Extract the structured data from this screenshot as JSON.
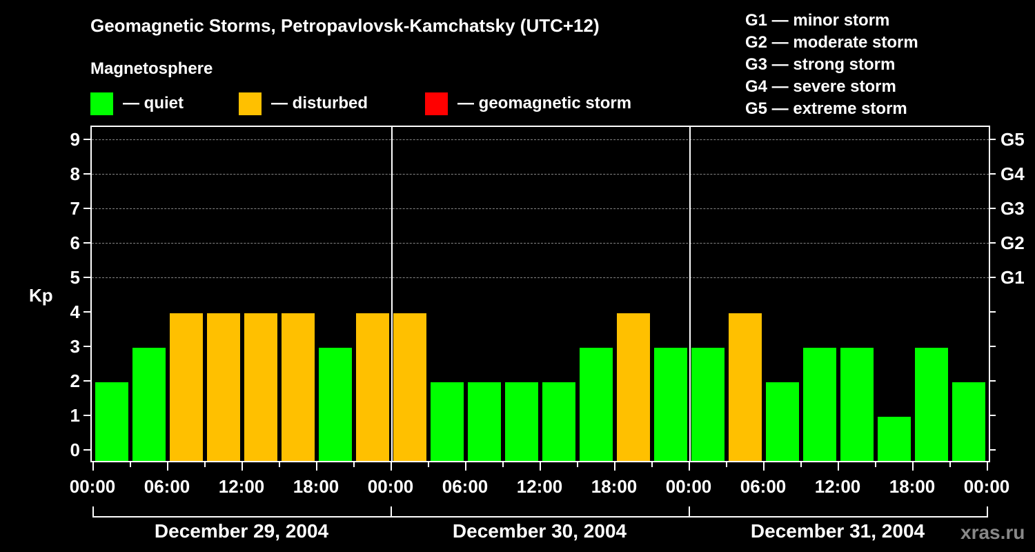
{
  "title": "Geomagnetic Storms, Petropavlovsk-Kamchatsky (UTC+12)",
  "subtitle": "Magnetosphere",
  "legend": [
    {
      "label": "— quiet",
      "color": "#00ff00"
    },
    {
      "label": "— disturbed",
      "color": "#ffc000"
    },
    {
      "label": "— geomagnetic storm",
      "color": "#ff0000"
    }
  ],
  "g_scale": [
    "G1 — minor storm",
    "G2 — moderate storm",
    "G3 — strong storm",
    "G4 — severe storm",
    "G5 — extreme storm"
  ],
  "y_axis_label": "Kp",
  "y_ticks": [
    "0",
    "1",
    "2",
    "3",
    "4",
    "5",
    "6",
    "7",
    "8",
    "9"
  ],
  "g_ticks": [
    {
      "label": "G1",
      "kp": 5
    },
    {
      "label": "G2",
      "kp": 6
    },
    {
      "label": "G3",
      "kp": 7
    },
    {
      "label": "G4",
      "kp": 8
    },
    {
      "label": "G5",
      "kp": 9
    }
  ],
  "x_ticks": [
    "00:00",
    "06:00",
    "12:00",
    "18:00",
    "00:00",
    "06:00",
    "12:00",
    "18:00",
    "00:00",
    "06:00",
    "12:00",
    "18:00",
    "00:00"
  ],
  "days": [
    "December 29, 2004",
    "December 30, 2004",
    "December 31, 2004"
  ],
  "watermark": "xras.ru",
  "colors": {
    "quiet": "#00ff00",
    "disturbed": "#ffc000",
    "storm": "#ff0000",
    "grid": "#888888"
  },
  "chart_data": {
    "type": "bar",
    "title": "Geomagnetic Storms, Petropavlovsk-Kamchatsky (UTC+12)",
    "xlabel": "",
    "ylabel": "Kp",
    "ylim": [
      0,
      9
    ],
    "grid": true,
    "legend_position": "top",
    "categories": [
      "Dec 29 00:00",
      "Dec 29 03:00",
      "Dec 29 06:00",
      "Dec 29 09:00",
      "Dec 29 12:00",
      "Dec 29 15:00",
      "Dec 29 18:00",
      "Dec 29 21:00",
      "Dec 30 00:00",
      "Dec 30 03:00",
      "Dec 30 06:00",
      "Dec 30 09:00",
      "Dec 30 12:00",
      "Dec 30 15:00",
      "Dec 30 18:00",
      "Dec 30 21:00",
      "Dec 31 00:00",
      "Dec 31 03:00",
      "Dec 31 06:00",
      "Dec 31 09:00",
      "Dec 31 12:00",
      "Dec 31 15:00",
      "Dec 31 18:00",
      "Dec 31 21:00"
    ],
    "values": [
      2,
      3,
      4,
      4,
      4,
      4,
      3,
      4,
      4,
      2,
      2,
      2,
      2,
      3,
      4,
      3,
      3,
      4,
      2,
      3,
      3,
      1,
      3,
      2
    ],
    "status": [
      "quiet",
      "quiet",
      "disturbed",
      "disturbed",
      "disturbed",
      "disturbed",
      "quiet",
      "disturbed",
      "disturbed",
      "quiet",
      "quiet",
      "quiet",
      "quiet",
      "quiet",
      "disturbed",
      "quiet",
      "quiet",
      "disturbed",
      "quiet",
      "quiet",
      "quiet",
      "quiet",
      "quiet",
      "quiet"
    ],
    "right_axis": {
      "G1": 5,
      "G2": 6,
      "G3": 7,
      "G4": 8,
      "G5": 9
    }
  }
}
